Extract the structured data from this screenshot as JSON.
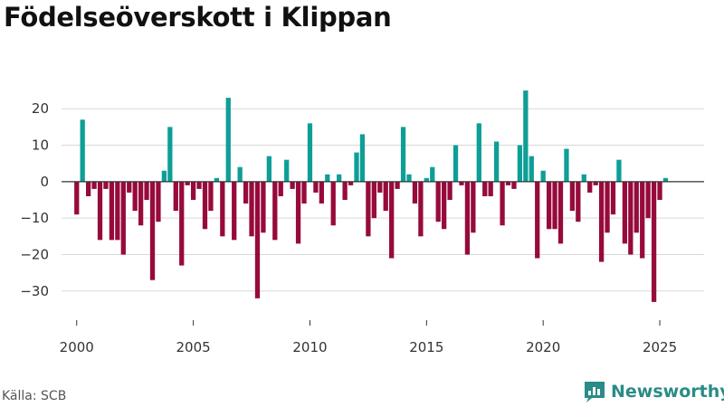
{
  "title": "Födelseöverskott i Klippan",
  "source": "Källa: SCB",
  "brand": {
    "name": "Newsworthy",
    "icon": "bar-chart-speech-bubble-icon"
  },
  "colors": {
    "positive": "#0d9f97",
    "negative": "#970a3c",
    "grid": "#d9d9d9",
    "zero": "#333333",
    "brand": "#2a8c86"
  },
  "chart_data": {
    "type": "bar",
    "title": "Födelseöverskott i Klippan",
    "xlabel": "",
    "ylabel": "",
    "frequency": "quarterly",
    "xlim": [
      1999.35,
      2026.9
    ],
    "ylim": [
      -37,
      27
    ],
    "yticks": [
      -30,
      -20,
      -10,
      0,
      10,
      20
    ],
    "ytick_labels": [
      "−30",
      "−20",
      "−10",
      "0",
      "10",
      "20"
    ],
    "xticks": [
      2000,
      2005,
      2010,
      2015,
      2020,
      2025
    ],
    "xtick_labels": [
      "2000",
      "2005",
      "2010",
      "2015",
      "2020",
      "2025"
    ],
    "x_start": 2000.0,
    "x_step": 0.25,
    "values": [
      -9,
      17,
      -4,
      -2,
      -16,
      -2,
      -16,
      -16,
      -20,
      -3,
      -8,
      -12,
      -5,
      -27,
      -11,
      3,
      15,
      -8,
      -23,
      -1,
      -5,
      -2,
      -13,
      -8,
      1,
      -15,
      23,
      -16,
      4,
      -6,
      -15,
      -32,
      -14,
      7,
      -16,
      -4,
      6,
      -2,
      -17,
      -6,
      16,
      -3,
      -6,
      2,
      -12,
      2,
      -5,
      -1,
      8,
      13,
      -15,
      -10,
      -3,
      -8,
      -21,
      -2,
      15,
      2,
      -6,
      -15,
      1,
      4,
      -11,
      -13,
      -5,
      10,
      -1,
      -20,
      -14,
      16,
      -4,
      -4,
      11,
      -12,
      -1,
      -2,
      10,
      25,
      7,
      -21,
      3,
      -13,
      -13,
      -17,
      9,
      -8,
      -11,
      2,
      -3,
      -1,
      -22,
      -14,
      -9,
      6,
      -17,
      -20,
      -14,
      -21,
      -10,
      -33,
      -5,
      1
    ]
  }
}
